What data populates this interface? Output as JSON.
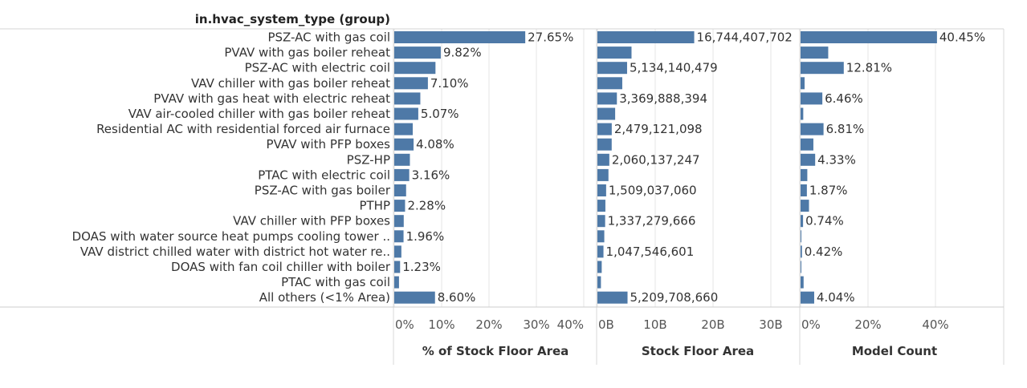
{
  "row_header": "in.hvac_system_type (group)",
  "colors": {
    "bar": "#4e79a7",
    "grid": "#e6e6e6",
    "axis": "#cccccc"
  },
  "chart_data": [
    {
      "type": "bar",
      "orientation": "horizontal",
      "xlabel": "% of Stock Floor Area",
      "xlim": [
        0,
        40
      ],
      "xticks": [
        {
          "value": 0,
          "label": "0%"
        },
        {
          "value": 10,
          "label": "10%"
        },
        {
          "value": 20,
          "label": "20%"
        },
        {
          "value": 30,
          "label": "30%"
        },
        {
          "value": 40,
          "label": "40%"
        }
      ],
      "categories": [
        "PSZ-AC with gas coil",
        "PVAV with gas boiler reheat",
        "PSZ-AC with electric coil",
        "VAV chiller with gas boiler reheat",
        "PVAV with gas heat with electric reheat",
        "VAV air-cooled chiller with gas boiler reheat",
        "Residential AC with residential forced air furnace",
        "PVAV with PFP boxes",
        "PSZ-HP",
        "PTAC with electric coil",
        "PSZ-AC with gas boiler",
        "PTHP",
        "VAV chiller with PFP boxes",
        "DOAS with water source heat pumps cooling tower ..",
        "VAV district chilled water with district hot water re..",
        "DOAS with fan coil chiller with boiler",
        "PTAC with gas coil",
        "All others (<1% Area)"
      ],
      "values": [
        27.65,
        9.82,
        8.7,
        7.1,
        5.5,
        5.07,
        3.9,
        4.08,
        3.3,
        3.16,
        2.5,
        2.28,
        2.0,
        1.96,
        1.5,
        1.23,
        1.0,
        8.6
      ],
      "labels": [
        "27.65%",
        "9.82%",
        "",
        "7.10%",
        "",
        "5.07%",
        "",
        "4.08%",
        "",
        "3.16%",
        "",
        "2.28%",
        "",
        "1.96%",
        "",
        "1.23%",
        "",
        "8.60%"
      ]
    },
    {
      "type": "bar",
      "orientation": "horizontal",
      "xlabel": "Stock Floor Area",
      "xlim": [
        0,
        40000000000
      ],
      "xticks": [
        {
          "value": 0,
          "label": "0B"
        },
        {
          "value": 10000000000,
          "label": "10B"
        },
        {
          "value": 20000000000,
          "label": "20B"
        },
        {
          "value": 30000000000,
          "label": "30B"
        }
      ],
      "values": [
        16744407702,
        5900000000,
        5134140479,
        4300000000,
        3369888394,
        3070000000,
        2479121098,
        2470000000,
        2060137247,
        1910000000,
        1509037060,
        1380000000,
        1337279666,
        1190000000,
        1047546601,
        745000000,
        610000000,
        5209708660
      ],
      "labels": [
        "16,744,407,702",
        "",
        "5,134,140,479",
        "",
        "3,369,888,394",
        "",
        "2,479,121,098",
        "",
        "2,060,137,247",
        "",
        "1,509,037,060",
        "",
        "1,337,279,666",
        "",
        "1,047,546,601",
        "",
        "",
        "5,209,708,660"
      ]
    },
    {
      "type": "bar",
      "orientation": "horizontal",
      "xlabel": "Model Count",
      "xlim": [
        0,
        50
      ],
      "xticks": [
        {
          "value": 0,
          "label": "0%"
        },
        {
          "value": 20,
          "label": "20%"
        },
        {
          "value": 40,
          "label": "40%"
        }
      ],
      "values": [
        40.45,
        8.2,
        12.81,
        1.2,
        6.46,
        0.8,
        6.81,
        3.8,
        4.33,
        2.0,
        1.87,
        2.5,
        0.74,
        0.2,
        0.42,
        0.2,
        0.9,
        4.04
      ],
      "labels": [
        "40.45%",
        "",
        "12.81%",
        "",
        "6.46%",
        "",
        "6.81%",
        "",
        "4.33%",
        "",
        "1.87%",
        "",
        "0.74%",
        "",
        "0.42%",
        "",
        "",
        "4.04%"
      ]
    }
  ]
}
